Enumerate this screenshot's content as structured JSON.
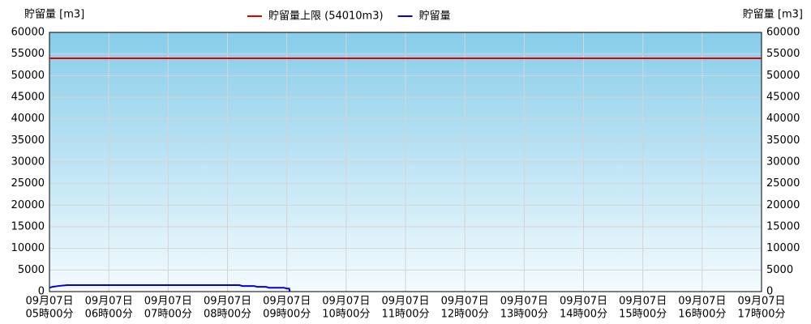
{
  "chart_data": {
    "type": "line",
    "y_label": "貯留量 [m3]",
    "y2_label": "貯留量 [m3]",
    "series": [
      {
        "name": "貯留量上限 (54010m3)",
        "color": "#e00000",
        "x": [
          5,
          17
        ],
        "values": [
          54010,
          54010
        ]
      },
      {
        "name": "貯留量",
        "color": "#0000e0",
        "x": [
          5.0,
          5.05,
          5.15,
          5.3,
          8.2,
          8.25,
          8.45,
          8.5,
          8.65,
          8.7,
          8.95,
          9.0,
          9.04,
          9.05
        ],
        "values": [
          900,
          1100,
          1300,
          1500,
          1500,
          1300,
          1300,
          1100,
          1100,
          900,
          900,
          700,
          700,
          0
        ]
      }
    ],
    "xlim": [
      5,
      17
    ],
    "xticks": [
      {
        "value": 5,
        "label": [
          "09月07日",
          "05時00分"
        ]
      },
      {
        "value": 6,
        "label": [
          "09月07日",
          "06時00分"
        ]
      },
      {
        "value": 7,
        "label": [
          "09月07日",
          "07時00分"
        ]
      },
      {
        "value": 8,
        "label": [
          "09月07日",
          "08時00分"
        ]
      },
      {
        "value": 9,
        "label": [
          "09月07日",
          "09時00分"
        ]
      },
      {
        "value": 10,
        "label": [
          "09月07日",
          "10時00分"
        ]
      },
      {
        "value": 11,
        "label": [
          "09月07日",
          "11時00分"
        ]
      },
      {
        "value": 12,
        "label": [
          "09月07日",
          "12時00分"
        ]
      },
      {
        "value": 13,
        "label": [
          "09月07日",
          "13時00分"
        ]
      },
      {
        "value": 14,
        "label": [
          "09月07日",
          "14時00分"
        ]
      },
      {
        "value": 15,
        "label": [
          "09月07日",
          "15時00分"
        ]
      },
      {
        "value": 16,
        "label": [
          "09月07日",
          "16時00分"
        ]
      },
      {
        "value": 17,
        "label": [
          "09月07日",
          "17時00分"
        ]
      }
    ],
    "ylim": [
      0,
      60000
    ],
    "yticks": [
      0,
      5000,
      10000,
      15000,
      20000,
      25000,
      30000,
      35000,
      40000,
      45000,
      50000,
      55000,
      60000
    ],
    "grid": true
  }
}
